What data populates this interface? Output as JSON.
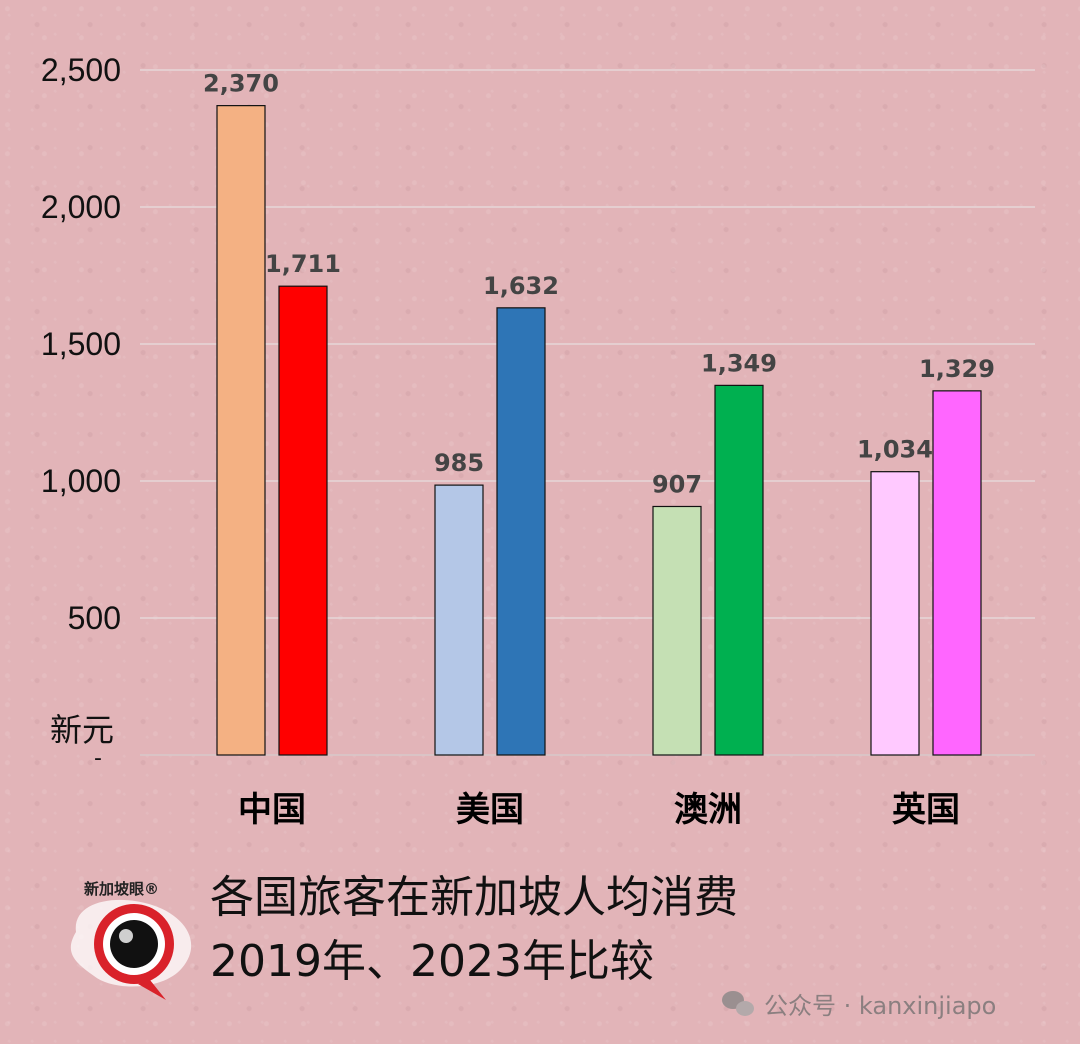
{
  "chart_data": {
    "type": "bar",
    "categories": [
      "中国",
      "美国",
      "澳洲",
      "英国"
    ],
    "series": [
      {
        "values": [
          2370,
          985,
          907,
          1034
        ],
        "colors": [
          "#f4b183",
          "#b4c7e7",
          "#c5e0b4",
          "#ffc9ff"
        ]
      },
      {
        "values": [
          1711,
          1632,
          1349,
          1329
        ],
        "colors": [
          "#ff0000",
          "#2e75b6",
          "#00b050",
          "#ff66ff"
        ]
      }
    ],
    "value_labels": [
      [
        "2,370",
        "985",
        "907",
        "1,034"
      ],
      [
        "1,711",
        "1,632",
        "1,349",
        "1,329"
      ]
    ],
    "y_ticks": [
      {
        "value": 500,
        "label": "500"
      },
      {
        "value": 1000,
        "label": "1,000"
      },
      {
        "value": 1500,
        "label": "1,500"
      },
      {
        "value": 2000,
        "label": "2,000"
      },
      {
        "value": 2500,
        "label": "2,500"
      }
    ],
    "ylim": [
      0,
      2500
    ],
    "ylabel": "新元",
    "zero_label": "-",
    "grid": true,
    "title": "各国旅客在新加坡人均消费",
    "subtitle": "2019年、2023年比较"
  },
  "logo": {
    "text": "新加坡眼®",
    "icon": "eye-logo-icon"
  },
  "watermark": {
    "icon": "wechat-icon",
    "text": "公众号 · kanxinjiapo"
  }
}
